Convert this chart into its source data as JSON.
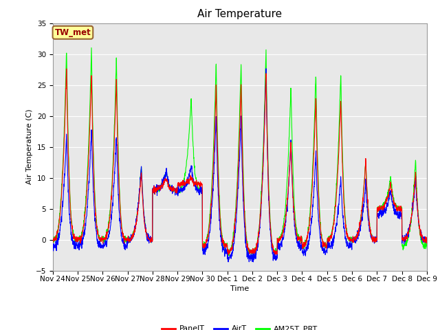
{
  "title": "Air Temperature",
  "ylabel": "Air Temperature (C)",
  "xlabel": "Time",
  "ylim": [
    -5,
    35
  ],
  "yticks": [
    -5,
    0,
    5,
    10,
    15,
    20,
    25,
    30,
    35
  ],
  "xtick_labels": [
    "Nov 24",
    "Nov 25",
    "Nov 26",
    "Nov 27",
    "Nov 28",
    "Nov 29",
    "Nov 30",
    "Dec 1",
    "Dec 2",
    "Dec 3",
    "Dec 4",
    "Dec 5",
    "Dec 6",
    "Dec 7",
    "Dec 8",
    "Dec 9"
  ],
  "legend_labels": [
    "PanelT",
    "AirT",
    "AM25T_PRT"
  ],
  "station_label": "TW_met",
  "bg_color": "#e8e8e8",
  "line_width": 0.8,
  "title_fontsize": 11,
  "axis_fontsize": 8,
  "tick_fontsize": 7.5
}
